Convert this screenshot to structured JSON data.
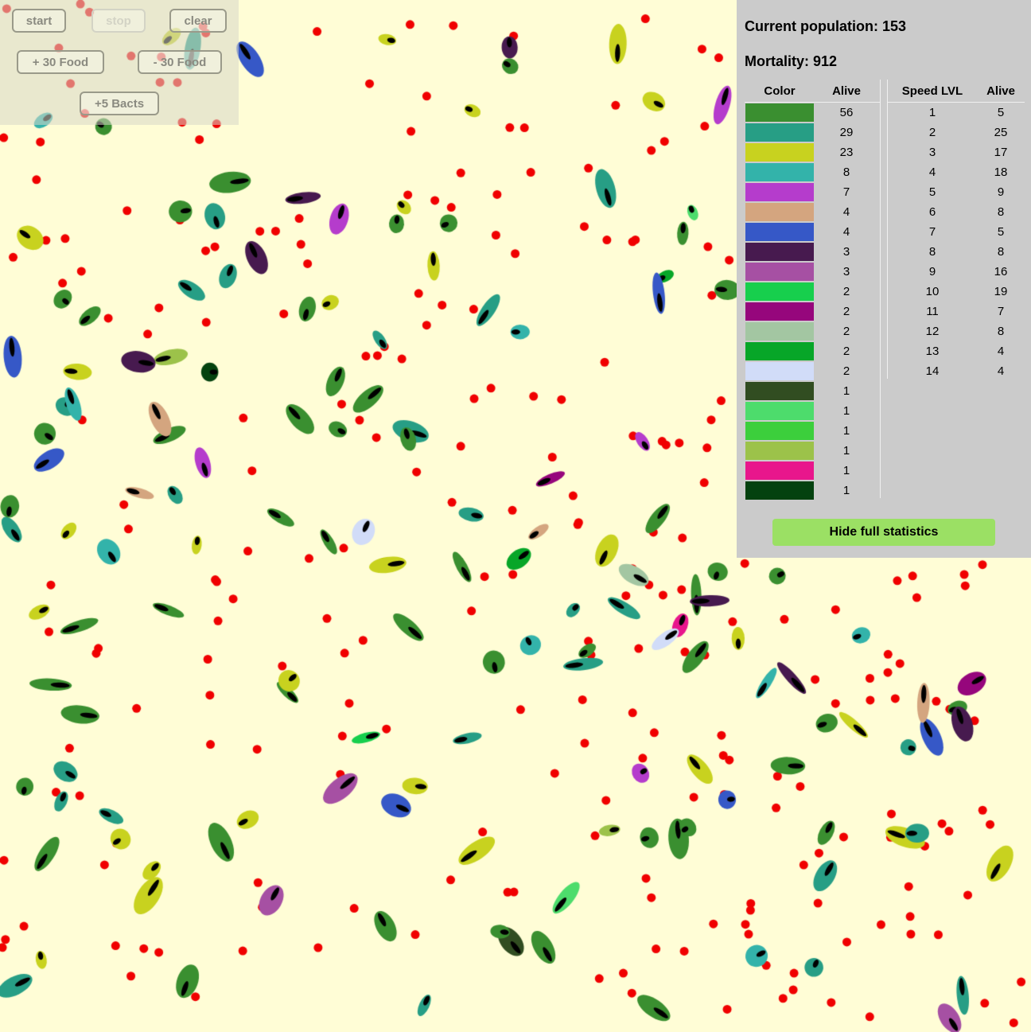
{
  "controls": {
    "start_label": "start",
    "stop_label": "stop",
    "clear_label": "clear",
    "add_food_label": "+ 30 Food",
    "remove_food_label": "- 30 Food",
    "add_bacts_label": "+5 Bacts"
  },
  "stats": {
    "population_label": "Current population:",
    "population_value": "153",
    "mortality_label": "Mortality:",
    "mortality_value": "912",
    "color_header": "Color",
    "alive_header": "Alive",
    "speed_header": "Speed LVL",
    "speed_alive_header": "Alive",
    "colors": [
      {
        "color": "#3a8f30",
        "alive": "56"
      },
      {
        "color": "#279e85",
        "alive": "29"
      },
      {
        "color": "#c8d21f",
        "alive": "23"
      },
      {
        "color": "#33b3aa",
        "alive": "8"
      },
      {
        "color": "#b53ccc",
        "alive": "7"
      },
      {
        "color": "#d4a57f",
        "alive": "4"
      },
      {
        "color": "#3658c7",
        "alive": "4"
      },
      {
        "color": "#471a4f",
        "alive": "3"
      },
      {
        "color": "#a650a3",
        "alive": "3"
      },
      {
        "color": "#17cf4d",
        "alive": "2"
      },
      {
        "color": "#96067c",
        "alive": "2"
      },
      {
        "color": "#a3c6a2",
        "alive": "2"
      },
      {
        "color": "#07a628",
        "alive": "2"
      },
      {
        "color": "#d1dcf8",
        "alive": "2"
      },
      {
        "color": "#314d21",
        "alive": "1"
      },
      {
        "color": "#4ddc6c",
        "alive": "1"
      },
      {
        "color": "#3ccf3c",
        "alive": "1"
      },
      {
        "color": "#9cc24a",
        "alive": "1"
      },
      {
        "color": "#e8168c",
        "alive": "1"
      },
      {
        "color": "#04420f",
        "alive": "1"
      }
    ],
    "speeds": [
      {
        "level": "1",
        "alive": "5"
      },
      {
        "level": "2",
        "alive": "25"
      },
      {
        "level": "3",
        "alive": "17"
      },
      {
        "level": "4",
        "alive": "18"
      },
      {
        "level": "5",
        "alive": "9"
      },
      {
        "level": "6",
        "alive": "8"
      },
      {
        "level": "7",
        "alive": "5"
      },
      {
        "level": "8",
        "alive": "8"
      },
      {
        "level": "9",
        "alive": "16"
      },
      {
        "level": "10",
        "alive": "19"
      },
      {
        "level": "11",
        "alive": "7"
      },
      {
        "level": "12",
        "alive": "8"
      },
      {
        "level": "13",
        "alive": "4"
      },
      {
        "level": "14",
        "alive": "4"
      }
    ],
    "hide_button_label": "Hide full statistics"
  },
  "colors": {
    "background": "#fffdd6",
    "food": "#f00000",
    "panel": "#cbcbcb",
    "hide_button": "#9be064"
  }
}
